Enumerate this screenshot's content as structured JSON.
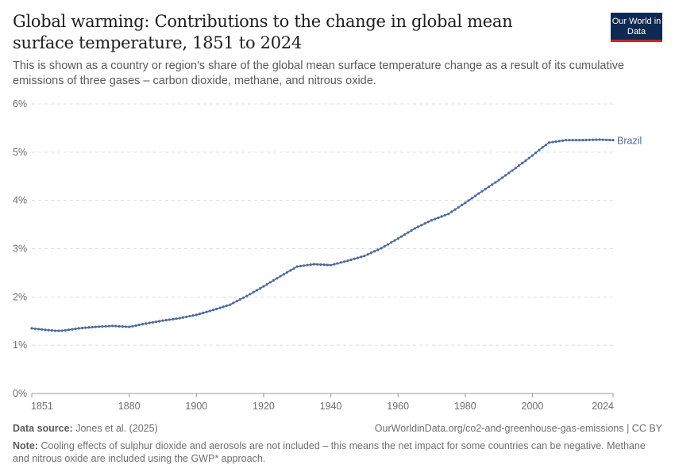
{
  "header": {
    "title": "Global warming: Contributions to the change in global mean surface temperature, 1851 to 2024",
    "subtitle": "This is shown as a country or region's share of the global mean surface temperature change as a result of its cumulative emissions of three gases – carbon dioxide, methane, and nitrous oxide.",
    "logo": "Our World in Data"
  },
  "footer": {
    "source_label": "Data source:",
    "source": "Jones et al. (2025)",
    "url": "OurWorldinData.org/co2-and-greenhouse-gas-emissions | CC BY",
    "note_label": "Note:",
    "note": "Cooling effects of sulphur dioxide and aerosols are not included – this means the net impact for some countries can be negative. Methane and nitrous oxide are included using the GWP* approach."
  },
  "chart_data": {
    "type": "line",
    "title": "Global warming: Contributions to the change in global mean surface temperature, 1851 to 2024",
    "xlabel": "",
    "ylabel": "",
    "xlim": [
      1851,
      2024
    ],
    "ylim": [
      0,
      6
    ],
    "x_ticks": [
      "1851",
      "1880",
      "1900",
      "1920",
      "1940",
      "1960",
      "1980",
      "2000",
      "2024"
    ],
    "y_ticks": [
      "0%",
      "1%",
      "2%",
      "3%",
      "4%",
      "5%",
      "6%"
    ],
    "grid": "horizontal dashed",
    "legend": "inline-right",
    "colors": {
      "Brazil": "#4c6a9c"
    },
    "series": [
      {
        "name": "Brazil",
        "x": [
          1851,
          1855,
          1858,
          1860,
          1865,
          1870,
          1875,
          1880,
          1885,
          1890,
          1895,
          1900,
          1905,
          1910,
          1915,
          1920,
          1925,
          1930,
          1935,
          1940,
          1945,
          1950,
          1955,
          1960,
          1965,
          1970,
          1975,
          1980,
          1985,
          1990,
          1995,
          2000,
          2003,
          2005,
          2010,
          2015,
          2020,
          2024
        ],
        "y": [
          1.35,
          1.32,
          1.3,
          1.3,
          1.35,
          1.38,
          1.4,
          1.38,
          1.45,
          1.51,
          1.56,
          1.63,
          1.73,
          1.84,
          2.02,
          2.22,
          2.43,
          2.63,
          2.68,
          2.66,
          2.75,
          2.85,
          3.01,
          3.21,
          3.42,
          3.59,
          3.72,
          3.95,
          4.19,
          4.42,
          4.67,
          4.93,
          5.1,
          5.2,
          5.25,
          5.25,
          5.26,
          5.25
        ]
      }
    ]
  }
}
